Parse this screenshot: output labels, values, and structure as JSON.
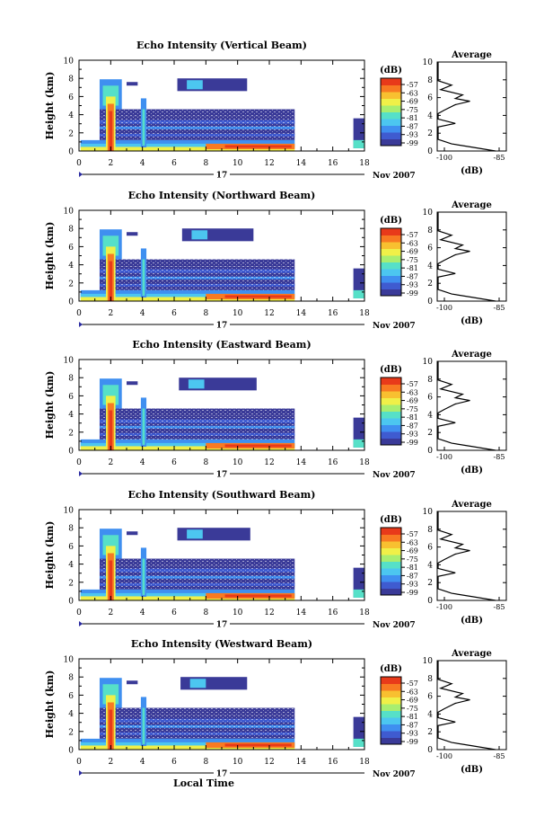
{
  "colors": {
    "colormap": [
      "#3a3a98",
      "#3f5bd0",
      "#3f8ff0",
      "#4cc6f0",
      "#56e0c8",
      "#a8ee70",
      "#f0f048",
      "#f8c030",
      "#f87a22",
      "#e83a1a"
    ],
    "background": "#ffffff",
    "line": "#000000"
  },
  "chart_data": [
    {
      "type": "heatmap",
      "title": "Echo Intensity (Vertical Beam)",
      "ylabel": "Height (km)",
      "xlabel": "",
      "xticks": [
        "0",
        "2",
        "4",
        "6",
        "8",
        "10",
        "12",
        "14",
        "16",
        "18"
      ],
      "yticks": [
        "0",
        "2",
        "4",
        "6",
        "8",
        "10"
      ],
      "xlim": [
        0,
        18
      ],
      "ylim": [
        0,
        10
      ],
      "date_label": "17",
      "date_suffix": "Nov 2007",
      "colorbar": {
        "unit": "(dB)",
        "labels": [
          "-57",
          "-63",
          "-69",
          "-75",
          "-81",
          "-87",
          "-93",
          "-99"
        ]
      },
      "profile": {
        "title": "Average",
        "xlabel": "(dB)",
        "xticks": [
          "-100",
          "-85"
        ],
        "yticks": [
          "0",
          "2",
          "4",
          "6",
          "8",
          "10"
        ]
      },
      "data_end": 13.6,
      "late_echo": [
        17.3,
        18.0
      ],
      "top_echo": [
        6.2,
        10.6
      ]
    },
    {
      "type": "heatmap",
      "title": "Echo Intensity (Northward Beam)",
      "ylabel": "Height (km)",
      "xlabel": "",
      "xticks": [
        "0",
        "2",
        "4",
        "6",
        "8",
        "10",
        "12",
        "14",
        "16",
        "18"
      ],
      "yticks": [
        "0",
        "2",
        "4",
        "6",
        "8",
        "10"
      ],
      "xlim": [
        0,
        18
      ],
      "ylim": [
        0,
        10
      ],
      "date_label": "17",
      "date_suffix": "Nov 2007",
      "colorbar": {
        "unit": "(dB)",
        "labels": [
          "-57",
          "-63",
          "-69",
          "-75",
          "-81",
          "-87",
          "-93",
          "-99"
        ]
      },
      "profile": {
        "title": "Average",
        "xlabel": "(dB)",
        "xticks": [
          "-100",
          "-85"
        ],
        "yticks": [
          "0",
          "2",
          "4",
          "6",
          "8",
          "10"
        ]
      },
      "data_end": 13.6,
      "late_echo": [
        17.3,
        18.0
      ],
      "top_echo": [
        6.5,
        11.0
      ]
    },
    {
      "type": "heatmap",
      "title": "Echo Intensity (Eastward Beam)",
      "ylabel": "Height (km)",
      "xlabel": "",
      "xticks": [
        "0",
        "2",
        "4",
        "6",
        "8",
        "10",
        "12",
        "14",
        "16",
        "18"
      ],
      "yticks": [
        "0",
        "2",
        "4",
        "6",
        "8",
        "10"
      ],
      "xlim": [
        0,
        18
      ],
      "ylim": [
        0,
        10
      ],
      "date_label": "17",
      "date_suffix": "Nov 2007",
      "colorbar": {
        "unit": "(dB)",
        "labels": [
          "-57",
          "-63",
          "-69",
          "-75",
          "-81",
          "-87",
          "-93",
          "-99"
        ]
      },
      "profile": {
        "title": "Average",
        "xlabel": "(dB)",
        "xticks": [
          "-100",
          "-85"
        ],
        "yticks": [
          "0",
          "2",
          "4",
          "6",
          "8",
          "10"
        ]
      },
      "data_end": 13.6,
      "late_echo": [
        17.3,
        18.0
      ],
      "top_echo": [
        6.3,
        11.2
      ]
    },
    {
      "type": "heatmap",
      "title": "Echo Intensity (Southward Beam)",
      "ylabel": "Height (km)",
      "xlabel": "",
      "xticks": [
        "0",
        "2",
        "4",
        "6",
        "8",
        "10",
        "12",
        "14",
        "16",
        "18"
      ],
      "yticks": [
        "0",
        "2",
        "4",
        "6",
        "8",
        "10"
      ],
      "xlim": [
        0,
        18
      ],
      "ylim": [
        0,
        10
      ],
      "date_label": "17",
      "date_suffix": "Nov 2007",
      "colorbar": {
        "unit": "(dB)",
        "labels": [
          "-57",
          "-63",
          "-69",
          "-75",
          "-81",
          "-87",
          "-93",
          "-99"
        ]
      },
      "profile": {
        "title": "Average",
        "xlabel": "(dB)",
        "xticks": [
          "-100",
          "-85"
        ],
        "yticks": [
          "0",
          "2",
          "4",
          "6",
          "8",
          "10"
        ]
      },
      "data_end": 13.6,
      "late_echo": [
        17.3,
        18.0
      ],
      "top_echo": [
        6.2,
        10.8
      ]
    },
    {
      "type": "heatmap",
      "title": "Echo Intensity (Westward Beam)",
      "ylabel": "Height (km)",
      "xlabel": "Local Time",
      "xticks": [
        "0",
        "2",
        "4",
        "6",
        "8",
        "10",
        "12",
        "14",
        "16",
        "18"
      ],
      "yticks": [
        "0",
        "2",
        "4",
        "6",
        "8",
        "10"
      ],
      "xlim": [
        0,
        18
      ],
      "ylim": [
        0,
        10
      ],
      "date_label": "17",
      "date_suffix": "Nov 2007",
      "colorbar": {
        "unit": "(dB)",
        "labels": [
          "-57",
          "-63",
          "-69",
          "-75",
          "-81",
          "-87",
          "-93",
          "-99"
        ]
      },
      "profile": {
        "title": "Average",
        "xlabel": "(dB)",
        "xticks": [
          "-100",
          "-85"
        ],
        "yticks": [
          "0",
          "2",
          "4",
          "6",
          "8",
          "10"
        ]
      },
      "data_end": 13.6,
      "late_echo": [
        17.3,
        18.0
      ],
      "top_echo": [
        6.4,
        10.6
      ]
    }
  ]
}
